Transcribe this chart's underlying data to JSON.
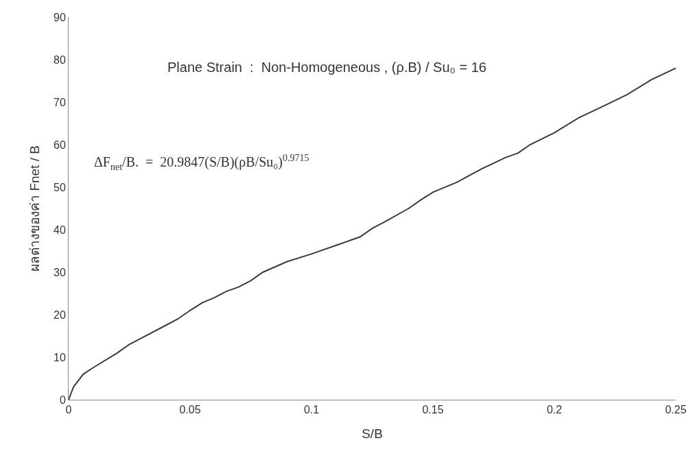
{
  "chart_data": {
    "type": "line",
    "xlabel": "S/B",
    "ylabel": "ผลต่างของค่า Fnet / B",
    "annotations": [
      "Plane Strain  :  Non-Homogeneous , (ρ.B) / Su₀ = 16",
      "ΔF$_{net}$/B.  =  20.9847(S/B)(ρB/Su₀)$^{0.9715}$"
    ],
    "x": [
      0,
      0.002,
      0.006,
      0.01,
      0.02,
      0.025,
      0.03,
      0.04,
      0.045,
      0.05,
      0.055,
      0.06,
      0.065,
      0.07,
      0.075,
      0.08,
      0.09,
      0.1,
      0.11,
      0.12,
      0.125,
      0.13,
      0.14,
      0.145,
      0.15,
      0.16,
      0.17,
      0.18,
      0.185,
      0.19,
      0.2,
      0.21,
      0.22,
      0.23,
      0.24,
      0.25
    ],
    "series": [
      {
        "color": "#3a3a3a",
        "values": [
          0,
          3,
          6,
          7.5,
          11,
          13,
          14.5,
          17.5,
          19,
          21,
          22.8,
          24,
          25.5,
          26.5,
          28,
          30,
          32.5,
          34.3,
          36.3,
          38.3,
          40.3,
          41.8,
          45,
          47,
          48.8,
          51.2,
          54.3,
          57,
          58,
          60,
          62.8,
          66.3,
          69,
          71.8,
          75.3,
          78
        ]
      }
    ],
    "xlim": [
      0,
      0.25
    ],
    "xticks": [
      0,
      0.05,
      0.1,
      0.15,
      0.2,
      0.25
    ],
    "ylim": [
      0,
      90
    ],
    "yticks": [
      0,
      10,
      20,
      30,
      40,
      50,
      60,
      70,
      80,
      90
    ],
    "grid": false,
    "legend": false,
    "marker": "none",
    "line_style": "solid"
  }
}
